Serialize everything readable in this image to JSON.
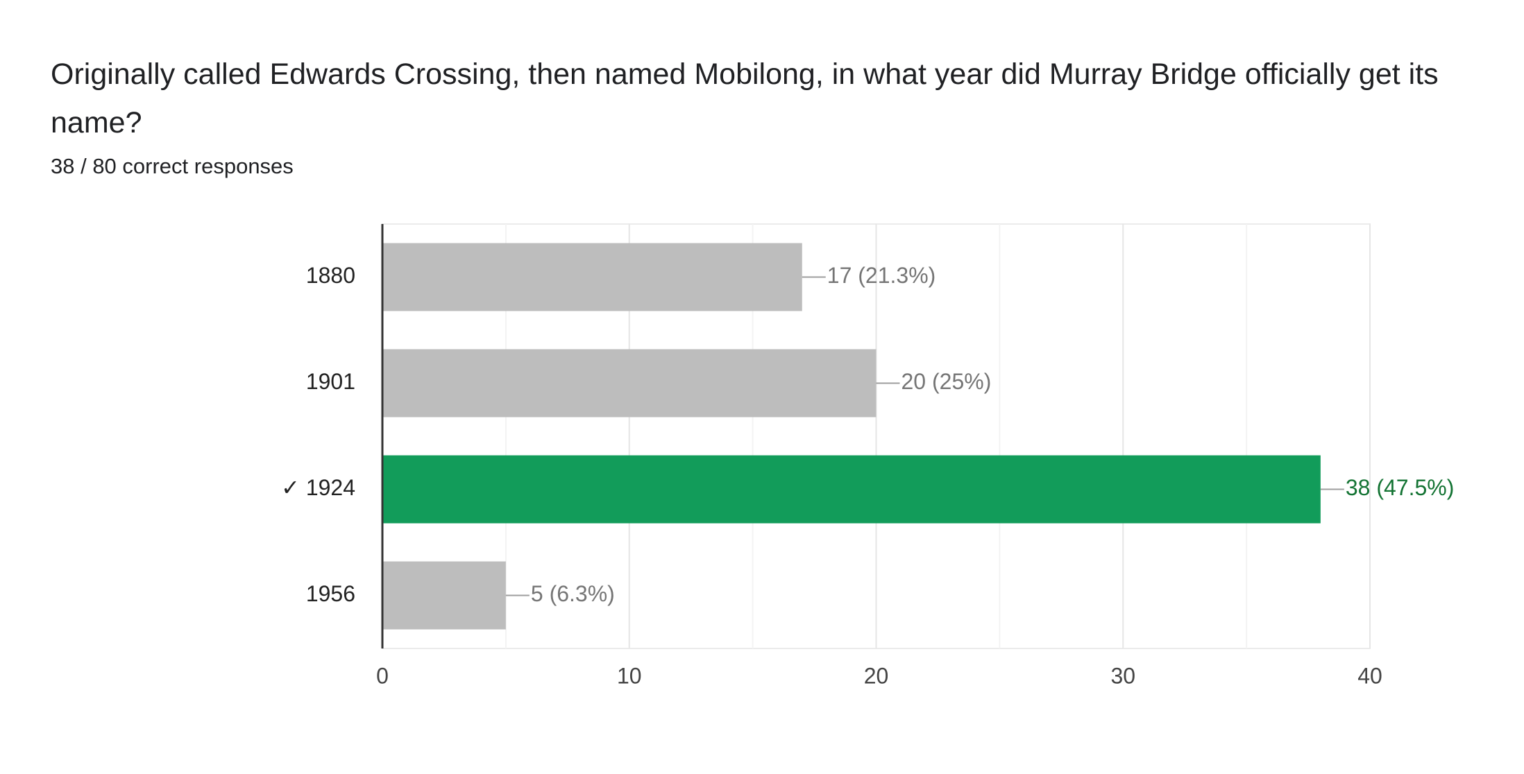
{
  "chart_data": {
    "type": "hbar",
    "title": "Originally called Edwards Crossing, then named Mobilong, in what year did Murray Bridge officially get its name?",
    "subtitle": "38 / 80 correct responses",
    "categories": [
      "1880",
      "1901",
      "✓ 1924",
      "1956"
    ],
    "values": [
      17,
      20,
      38,
      5
    ],
    "value_labels": [
      "17 (21.3%)",
      "20 (25%)",
      "38 (47.5%)",
      "5 (6.3%)"
    ],
    "colors": [
      "#bdbdbd",
      "#bdbdbd",
      "#129c5a",
      "#bdbdbd"
    ],
    "label_colors": [
      "#757575",
      "#757575",
      "#137333",
      "#757575"
    ],
    "xlim": [
      0,
      40
    ],
    "xticks": [
      0,
      10,
      20,
      30,
      40
    ],
    "minor_xticks": [
      5,
      15,
      25,
      35
    ],
    "grid": true
  }
}
